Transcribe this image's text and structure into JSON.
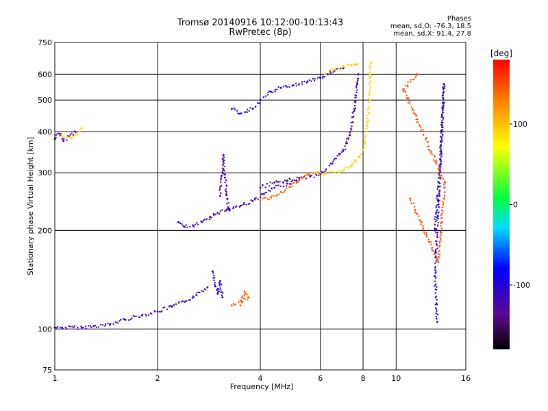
{
  "chart_data": {
    "type": "scatter",
    "title": "Tromsø 20140916 10:12:00-10:13:43",
    "subtitle": "RwPretec (8p)",
    "xlabel": "Frequency [MHz]",
    "ylabel": "Stationary phase Virtual Height [km]",
    "x_scale": "log",
    "y_scale": "log",
    "xlim": [
      1,
      16
    ],
    "ylim": [
      75,
      750
    ],
    "x_ticks": [
      1,
      2,
      4,
      6,
      8,
      10,
      16
    ],
    "x_tick_labels": [
      "1",
      "2",
      "4",
      "6",
      "8",
      "10",
      "16"
    ],
    "y_ticks": [
      75,
      100,
      200,
      300,
      400,
      500,
      600,
      750
    ],
    "y_tick_labels": [
      "75",
      "100",
      "200",
      "300",
      "400",
      "500",
      "600",
      "750"
    ],
    "grid": true,
    "stats": {
      "heading": "Phases",
      "line_o": "mean, sd,O: -76.3, 18.5",
      "line_x": "mean, sd,X:  91.4, 27.8"
    },
    "colorbar": {
      "label": "[deg]",
      "range": [
        -180,
        180
      ],
      "ticks": [
        100,
        0,
        -100
      ],
      "tick_labels": [
        "100",
        "0",
        "-100"
      ]
    },
    "traces": [
      {
        "name": "low",
        "phase": -118,
        "pts": [
          [
            1.0,
            101
          ],
          [
            1.05,
            101
          ],
          [
            1.2,
            101
          ],
          [
            1.3,
            102
          ],
          [
            1.45,
            103
          ],
          [
            1.6,
            107
          ],
          [
            1.8,
            110
          ],
          [
            2.0,
            113
          ],
          [
            2.2,
            117
          ],
          [
            2.4,
            121
          ],
          [
            2.6,
            127
          ],
          [
            2.8,
            134
          ]
        ]
      },
      {
        "name": "low-spike",
        "phase": -112,
        "pts": [
          [
            2.9,
            150
          ],
          [
            2.95,
            135
          ],
          [
            3.0,
            128
          ],
          [
            3.05,
            140
          ],
          [
            3.1,
            125
          ]
        ]
      },
      {
        "name": "e",
        "phase": -116,
        "pts": [
          [
            2.3,
            212
          ],
          [
            2.4,
            205
          ],
          [
            2.55,
            206
          ],
          [
            2.7,
            212
          ],
          [
            2.85,
            220
          ],
          [
            3.0,
            226
          ],
          [
            3.2,
            232
          ],
          [
            3.5,
            238
          ],
          [
            3.8,
            246
          ],
          [
            4.1,
            258
          ],
          [
            4.4,
            270
          ],
          [
            4.8,
            278
          ],
          [
            5.2,
            285
          ]
        ]
      },
      {
        "name": "f1-spike",
        "phase": -128,
        "pts": [
          [
            3.05,
            255
          ],
          [
            3.1,
            300
          ],
          [
            3.12,
            340
          ],
          [
            3.15,
            290
          ],
          [
            3.2,
            250
          ],
          [
            3.25,
            230
          ]
        ]
      },
      {
        "name": "f2-o",
        "phase": -122,
        "pts": [
          [
            4.0,
            270
          ],
          [
            4.4,
            280
          ],
          [
            4.8,
            284
          ],
          [
            5.2,
            289
          ],
          [
            5.6,
            292
          ],
          [
            6.0,
            298
          ],
          [
            6.5,
            320
          ],
          [
            7.0,
            350
          ],
          [
            7.3,
            390
          ],
          [
            7.55,
            470
          ],
          [
            7.7,
            560
          ],
          [
            7.75,
            600
          ]
        ]
      },
      {
        "name": "f2-x-orange",
        "phase": 140,
        "pts": [
          [
            4.0,
            247
          ],
          [
            4.3,
            252
          ],
          [
            4.6,
            262
          ],
          [
            4.9,
            272
          ],
          [
            5.2,
            285
          ],
          [
            5.5,
            296
          ],
          [
            5.8,
            300
          ]
        ]
      },
      {
        "name": "f2-x-yellow",
        "phase": 90,
        "pts": [
          [
            5.8,
            300
          ],
          [
            6.2,
            299
          ],
          [
            6.6,
            300
          ],
          [
            7.0,
            305
          ],
          [
            7.4,
            315
          ],
          [
            7.8,
            335
          ],
          [
            8.1,
            370
          ],
          [
            8.25,
            430
          ],
          [
            8.35,
            520
          ],
          [
            8.4,
            600
          ],
          [
            8.45,
            650
          ]
        ]
      },
      {
        "name": "upper",
        "phase": -108,
        "pts": [
          [
            3.3,
            470
          ],
          [
            3.5,
            455
          ],
          [
            3.8,
            470
          ],
          [
            4.0,
            500
          ],
          [
            4.3,
            530
          ],
          [
            4.6,
            545
          ],
          [
            5.0,
            555
          ],
          [
            5.5,
            570
          ],
          [
            6.0,
            585
          ],
          [
            6.3,
            600
          ],
          [
            6.6,
            615
          ],
          [
            7.0,
            625
          ]
        ]
      },
      {
        "name": "upper-yellow",
        "phase": 95,
        "pts": [
          [
            6.2,
            600
          ],
          [
            6.6,
            620
          ],
          [
            7.0,
            635
          ],
          [
            7.4,
            640
          ],
          [
            7.7,
            645
          ]
        ]
      },
      {
        "name": "left",
        "phase": -130,
        "pts": [
          [
            1.0,
            380
          ],
          [
            1.03,
            395
          ],
          [
            1.06,
            375
          ],
          [
            1.1,
            388
          ],
          [
            1.15,
            400
          ]
        ]
      },
      {
        "name": "left-yellow",
        "phase": 90,
        "pts": [
          [
            1.05,
            390
          ],
          [
            1.12,
            382
          ],
          [
            1.2,
            410
          ]
        ]
      },
      {
        "name": "scatter-orange",
        "phase": 145,
        "pts": [
          [
            3.5,
            118
          ],
          [
            3.6,
            130
          ],
          [
            3.7,
            125
          ],
          [
            3.3,
            118
          ]
        ]
      },
      {
        "name": "right",
        "phase": -110,
        "pts": [
          [
            13.0,
            200
          ],
          [
            13.5,
            320
          ],
          [
            13.8,
            560
          ],
          [
            13.0,
            145
          ],
          [
            13.2,
            105
          ]
        ]
      },
      {
        "name": "right-warm",
        "phase": 150,
        "pts": [
          [
            11.0,
            250
          ],
          [
            13.3,
            160
          ],
          [
            13.9,
            280
          ],
          [
            10.5,
            540
          ],
          [
            11.5,
            600
          ]
        ]
      }
    ]
  }
}
